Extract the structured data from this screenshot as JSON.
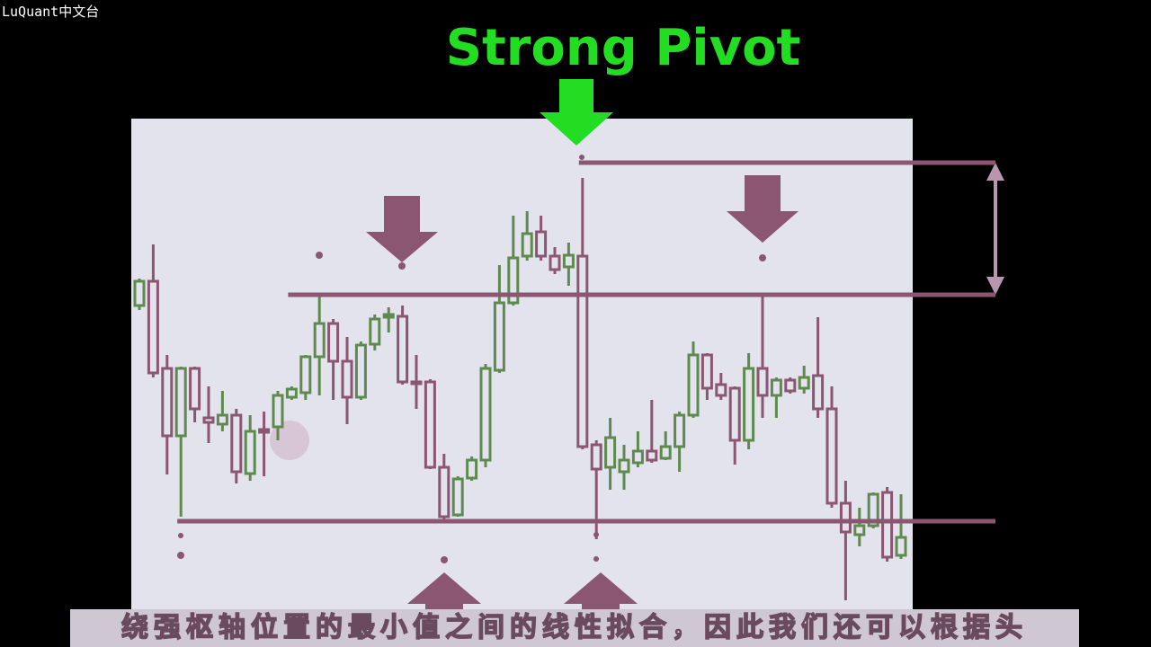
{
  "watermark": "LuQuant中文台",
  "subtitle": "绕强枢轴位置的最小值之间的线性拟合，因此我们还可以根据头",
  "chart_data": {
    "type": "candlestick",
    "title": "Strong Pivot",
    "up_color": "#5f8a4f",
    "down_color": "#8b5671",
    "title_color": "#22dd22",
    "ylim": [
      20,
      570
    ],
    "open": [
      360,
      387,
      290,
      215,
      290,
      235,
      228,
      238,
      173,
      222,
      225,
      258,
      263,
      303,
      340,
      298,
      258,
      317,
      347,
      348,
      275,
      275,
      180,
      127,
      168,
      188,
      288,
      363,
      415,
      442,
      415,
      403,
      415,
      205,
      180,
      175,
      185,
      198,
      190,
      203,
      238,
      305,
      272,
      268,
      210,
      290,
      260,
      277,
      268,
      282,
      245,
      140,
      105,
      115,
      152,
      82
    ],
    "high": [
      390,
      428,
      305,
      292,
      292,
      270,
      265,
      245,
      238,
      242,
      265,
      270,
      305,
      370,
      345,
      325,
      320,
      350,
      358,
      360,
      305,
      278,
      195,
      170,
      192,
      295,
      405,
      460,
      465,
      460,
      425,
      430,
      502,
      210,
      235,
      205,
      220,
      255,
      220,
      242,
      320,
      307,
      285,
      270,
      307,
      370,
      280,
      280,
      293,
      347,
      270,
      165,
      135,
      152,
      158,
      150
    ],
    "low": [
      355,
      280,
      172,
      125,
      230,
      207,
      220,
      162,
      165,
      170,
      210,
      255,
      255,
      260,
      255,
      228,
      255,
      310,
      330,
      272,
      245,
      178,
      122,
      125,
      165,
      180,
      285,
      360,
      410,
      410,
      395,
      382,
      200,
      100,
      155,
      155,
      180,
      185,
      188,
      175,
      235,
      255,
      255,
      183,
      200,
      235,
      235,
      262,
      262,
      235,
      135,
      32,
      92,
      112,
      75,
      78
    ],
    "close": [
      387,
      285,
      215,
      290,
      245,
      230,
      238,
      175,
      220,
      219,
      260,
      267,
      303,
      340,
      298,
      258,
      316,
      345,
      350,
      275,
      273,
      180,
      125,
      167,
      188,
      290,
      363,
      413,
      440,
      415,
      400,
      416,
      203,
      178,
      213,
      188,
      198,
      188,
      203,
      238,
      305,
      268,
      260,
      210,
      290,
      260,
      277,
      265,
      280,
      245,
      140,
      108,
      115,
      150,
      80,
      102
    ],
    "levels": [
      {
        "value": 519,
        "from": 32
      },
      {
        "value": 372,
        "from": 11
      },
      {
        "value": 120,
        "from": 3
      }
    ]
  }
}
